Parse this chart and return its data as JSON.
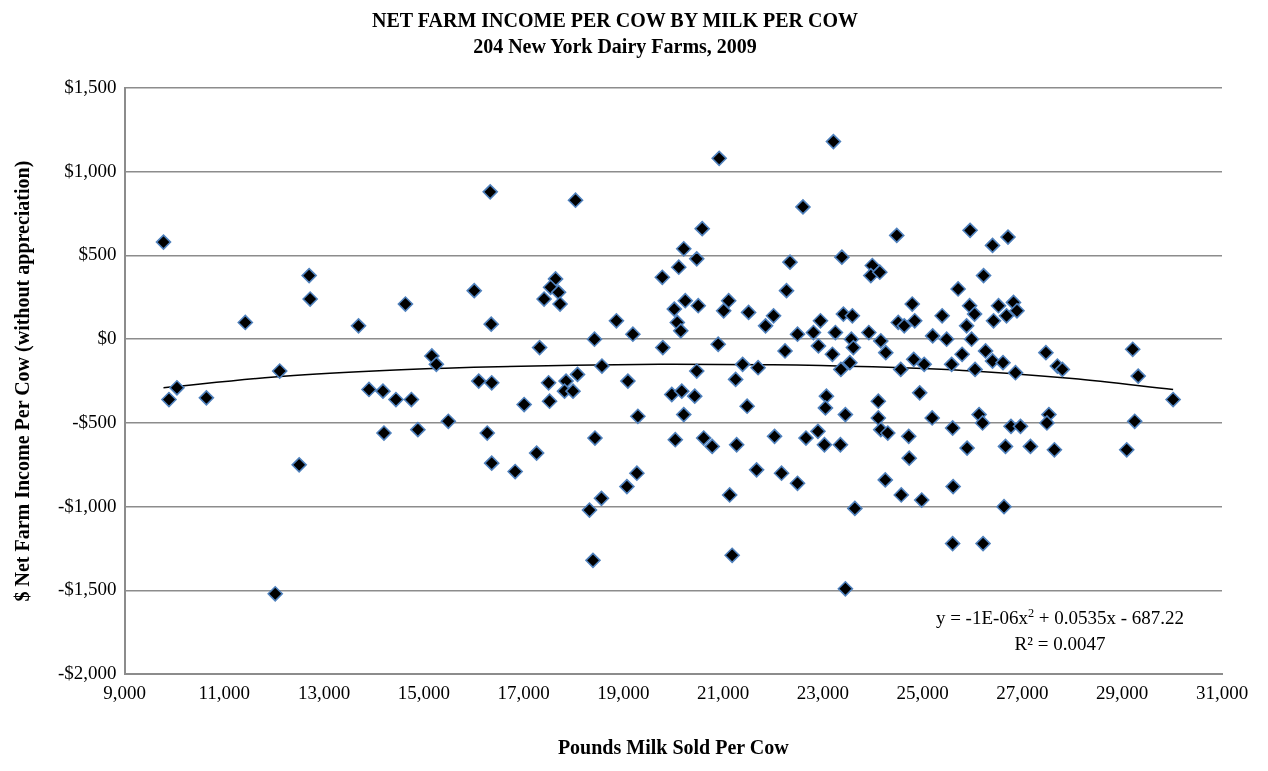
{
  "chart_data": {
    "type": "scatter",
    "title": "NET FARM INCOME PER COW BY MILK PER COW",
    "subtitle": "204 New York Dairy Farms, 2009",
    "xlabel": "Pounds Milk Sold Per Cow",
    "ylabel": "$ Net Farm Income Per Cow (without appreciation)",
    "xlim": [
      9000,
      31000
    ],
    "xticks": [
      {
        "value": 9000,
        "label": "9,000"
      },
      {
        "value": 11000,
        "label": "11,000"
      },
      {
        "value": 13000,
        "label": "13,000"
      },
      {
        "value": 15000,
        "label": "15,000"
      },
      {
        "value": 17000,
        "label": "17,000"
      },
      {
        "value": 19000,
        "label": "19,000"
      },
      {
        "value": 21000,
        "label": "21,000"
      },
      {
        "value": 23000,
        "label": "23,000"
      },
      {
        "value": 25000,
        "label": "25,000"
      },
      {
        "value": 27000,
        "label": "27,000"
      },
      {
        "value": 29000,
        "label": "29,000"
      },
      {
        "value": 31000,
        "label": "31,000"
      }
    ],
    "ylim": [
      -2000,
      1500
    ],
    "yticks": [
      {
        "value": -2000,
        "label": "-$2,000"
      },
      {
        "value": -1500,
        "label": "-$1,500"
      },
      {
        "value": -1000,
        "label": "-$1,000"
      },
      {
        "value": -500,
        "label": "-$500"
      },
      {
        "value": 0,
        "label": "$0"
      },
      {
        "value": 500,
        "label": "$500"
      },
      {
        "value": 1000,
        "label": "$1,000"
      },
      {
        "value": 1500,
        "label": "$1,500"
      }
    ],
    "grid": "y",
    "legend": false,
    "annotations": [
      "y = -1E-06x$^{2}$ + 0.0535x - 687.22",
      "R² = 0.0047"
    ],
    "series": [
      {
        "marker": "diamond",
        "color": "#000000",
        "x": [
          9780,
          9890,
          10050,
          10640,
          11420,
          12020,
          12110,
          12500,
          12700,
          12720,
          13690,
          13900,
          14180,
          14200,
          14440,
          14630,
          14750,
          14880,
          15160,
          15250,
          15490,
          16010,
          16100,
          16270,
          16330,
          16350,
          16360,
          16360,
          18040,
          17640,
          17540,
          17700,
          17410,
          17730,
          18860,
          18420,
          19190,
          17320,
          18570,
          17500,
          17850,
          18080,
          19090,
          17820,
          17990,
          17010,
          17520,
          19290,
          18430,
          16830,
          17260,
          19270,
          19070,
          18560,
          18320,
          18390,
          20920,
          23210,
          22600,
          20580,
          20210,
          20470,
          20110,
          22340,
          23380,
          19780,
          22270,
          20240,
          20020,
          20500,
          21110,
          21010,
          21510,
          22010,
          21850,
          20080,
          20150,
          22490,
          22810,
          22950,
          23250,
          23410,
          23590,
          22910,
          23570,
          23610,
          19790,
          20900,
          22240,
          23190,
          23360,
          23540,
          20470,
          21390,
          21700,
          21250,
          19970,
          20170,
          20430,
          20210,
          21480,
          23070,
          23050,
          23450,
          20040,
          20610,
          20780,
          21270,
          22030,
          22660,
          22900,
          23030,
          23350,
          21130,
          21670,
          22170,
          22490,
          21180,
          23450,
          23640,
          24480,
          25950,
          26400,
          26710,
          23990,
          23960,
          24140,
          26220,
          25710,
          24790,
          24510,
          24630,
          24840,
          25390,
          25940,
          26040,
          25880,
          25980,
          26520,
          26420,
          26680,
          26820,
          26890,
          23920,
          24160,
          25200,
          25480,
          24260,
          24820,
          25030,
          25580,
          25790,
          26050,
          26260,
          26400,
          26610,
          26860,
          27470,
          27700,
          27800,
          29210,
          29320,
          24560,
          30020,
          29250,
          29090,
          24940,
          24110,
          24110,
          24160,
          24300,
          24720,
          24730,
          25190,
          25600,
          25890,
          26130,
          26200,
          26660,
          26770,
          26960,
          27160,
          27530,
          27490,
          27640,
          24250,
          24570,
          24980,
          25610,
          26630,
          25600,
          26210
        ],
        "values": [
          580,
          -360,
          -290,
          -350,
          100,
          -1520,
          -190,
          -750,
          380,
          240,
          80,
          -300,
          -310,
          -560,
          -360,
          210,
          -360,
          -540,
          -100,
          -150,
          -490,
          290,
          -250,
          -560,
          880,
          90,
          -260,
          -740,
          830,
          360,
          310,
          280,
          240,
          210,
          110,
          0,
          30,
          -50,
          -160,
          -260,
          -250,
          -210,
          -250,
          -310,
          -310,
          -390,
          -370,
          -460,
          -590,
          -790,
          -680,
          -800,
          -880,
          -950,
          -1020,
          -1320,
          1080,
          1180,
          790,
          660,
          540,
          480,
          430,
          460,
          490,
          370,
          290,
          230,
          180,
          200,
          230,
          170,
          160,
          140,
          80,
          100,
          50,
          30,
          40,
          110,
          40,
          150,
          140,
          -40,
          0,
          -50,
          -50,
          -30,
          -70,
          -90,
          -180,
          -140,
          -190,
          -150,
          -170,
          -240,
          -330,
          -310,
          -340,
          -450,
          -400,
          -340,
          -410,
          -450,
          -600,
          -590,
          -640,
          -630,
          -580,
          -590,
          -550,
          -630,
          -630,
          -930,
          -780,
          -800,
          -860,
          -1290,
          -1490,
          -1010,
          620,
          650,
          560,
          610,
          440,
          380,
          400,
          380,
          300,
          210,
          100,
          80,
          110,
          140,
          200,
          150,
          80,
          0,
          200,
          110,
          140,
          220,
          170,
          40,
          -10,
          20,
          0,
          -80,
          -120,
          -150,
          -150,
          -90,
          -180,
          -70,
          -130,
          -140,
          -200,
          -80,
          -160,
          -180,
          -60,
          -220,
          -180,
          -360,
          -490,
          -660,
          -320,
          -370,
          -470,
          -540,
          -560,
          -580,
          -710,
          -470,
          -530,
          -650,
          -450,
          -500,
          -640,
          -520,
          -520,
          -640,
          -450,
          -500,
          -660,
          -840,
          -930,
          -960,
          -880,
          -1000,
          -1220,
          -1220
        ]
      },
      {
        "type": "line",
        "marker": "none",
        "color": "#000000",
        "x": [
          9780,
          12000,
          14000,
          16000,
          18000,
          20000,
          22000,
          24000,
          26000,
          28000,
          30020
        ],
        "values": [
          -290,
          -225,
          -190,
          -168,
          -155,
          -150,
          -152,
          -165,
          -190,
          -235,
          -300
        ]
      }
    ]
  }
}
